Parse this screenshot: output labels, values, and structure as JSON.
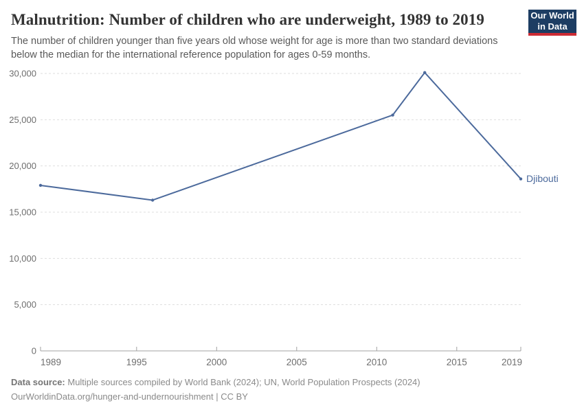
{
  "header": {
    "title": "Malnutrition: Number of children who are underweight, 1989 to 2019",
    "subtitle_line1": "The number of children younger than five years old whose weight for age is more than two standard deviations",
    "subtitle_line2": "below the median for the international reference population for ages 0-59 months.",
    "logo_line1": "Our World",
    "logo_line2": "in Data"
  },
  "chart_data": {
    "type": "line",
    "title": "Malnutrition: Number of children who are underweight, 1989 to 2019",
    "xlabel": "",
    "ylabel": "",
    "xlim": [
      1989,
      2019
    ],
    "ylim": [
      0,
      30000
    ],
    "x_ticks": [
      1989,
      1995,
      2000,
      2005,
      2010,
      2015,
      2019
    ],
    "y_ticks": [
      0,
      5000,
      10000,
      15000,
      20000,
      25000,
      30000
    ],
    "grid": "horizontal-dashed",
    "legend_position": "end-of-line-label",
    "series": [
      {
        "name": "Djibouti",
        "color": "#4c6a9c",
        "points": [
          {
            "x": 1989,
            "y": 17900
          },
          {
            "x": 1996,
            "y": 16300
          },
          {
            "x": 2011,
            "y": 25500
          },
          {
            "x": 2013,
            "y": 30100
          },
          {
            "x": 2019,
            "y": 18600
          }
        ]
      }
    ],
    "end_label": "Djibouti"
  },
  "footer": {
    "source_label": "Data source:",
    "source_text": " Multiple sources compiled by World Bank (2024); UN, World Population Prospects (2024)",
    "url_line": "OurWorldinData.org/hunger-and-undernourishment | CC BY"
  },
  "colors": {
    "line": "#4c6a9c",
    "end_label": "#4c6a9c",
    "grid": "#dddddd",
    "axis": "#a1a1a1",
    "tick_text": "#6e6e6e",
    "logo_bg": "#1d3d63",
    "logo_accent": "#cc2b34"
  }
}
